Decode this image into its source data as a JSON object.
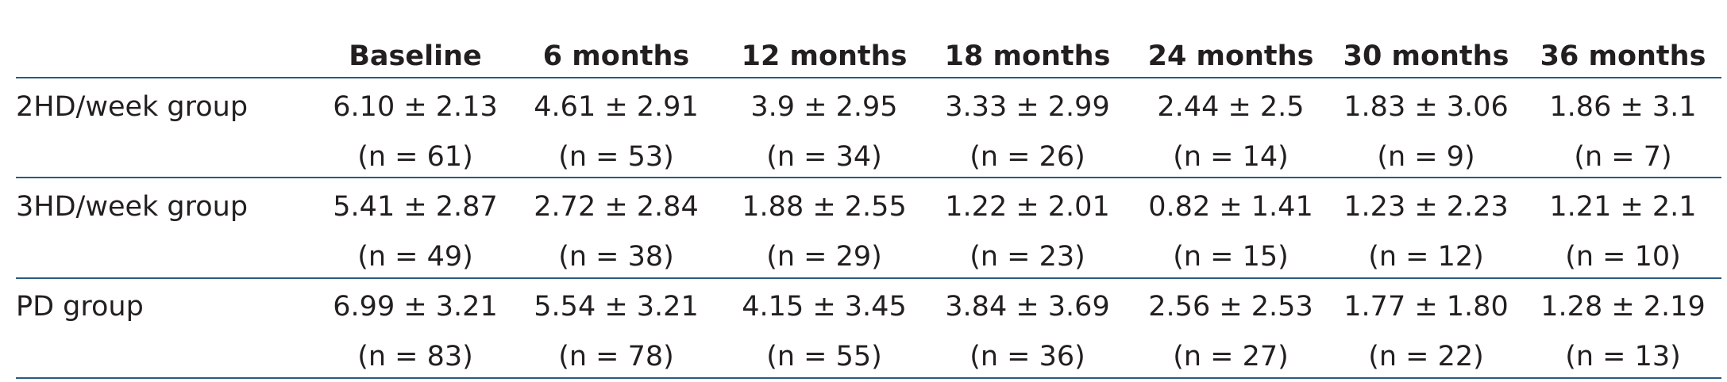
{
  "table": {
    "columns": [
      "Baseline",
      "6 months",
      "12 months",
      "18 months",
      "24 months",
      "30 months",
      "36 months"
    ],
    "rows": [
      {
        "label": "2HD/week group",
        "cells": [
          [
            "6.10 ± 2.13",
            "(n = 61)"
          ],
          [
            "4.61 ± 2.91",
            "(n = 53)"
          ],
          [
            "3.9 ± 2.95",
            "(n = 34)"
          ],
          [
            "3.33 ± 2.99",
            "(n = 26)"
          ],
          [
            "2.44 ± 2.5",
            "(n = 14)"
          ],
          [
            "1.83 ± 3.06",
            "(n = 9)"
          ],
          [
            "1.86 ± 3.1",
            "(n = 7)"
          ]
        ]
      },
      {
        "label": "3HD/week group",
        "cells": [
          [
            "5.41 ± 2.87",
            "(n = 49)"
          ],
          [
            "2.72 ± 2.84",
            "(n = 38)"
          ],
          [
            "1.88 ± 2.55",
            "(n = 29)"
          ],
          [
            "1.22 ± 2.01",
            "(n = 23)"
          ],
          [
            "0.82 ± 1.41",
            "(n = 15)"
          ],
          [
            "1.23 ± 2.23",
            "(n = 12)"
          ],
          [
            "1.21 ± 2.1",
            "(n = 10)"
          ]
        ]
      },
      {
        "label": "PD group",
        "cells": [
          [
            "6.99 ± 3.21",
            "(n = 83)"
          ],
          [
            "5.54 ± 3.21",
            "(n = 78)"
          ],
          [
            "4.15 ± 3.45",
            "(n = 55)"
          ],
          [
            "3.84 ± 3.69",
            "(n = 36)"
          ],
          [
            "2.56 ± 2.53",
            "(n = 27)"
          ],
          [
            "1.77 ± 1.80",
            "(n = 22)"
          ],
          [
            "1.28 ± 2.19",
            "(n = 13)"
          ]
        ]
      }
    ]
  }
}
